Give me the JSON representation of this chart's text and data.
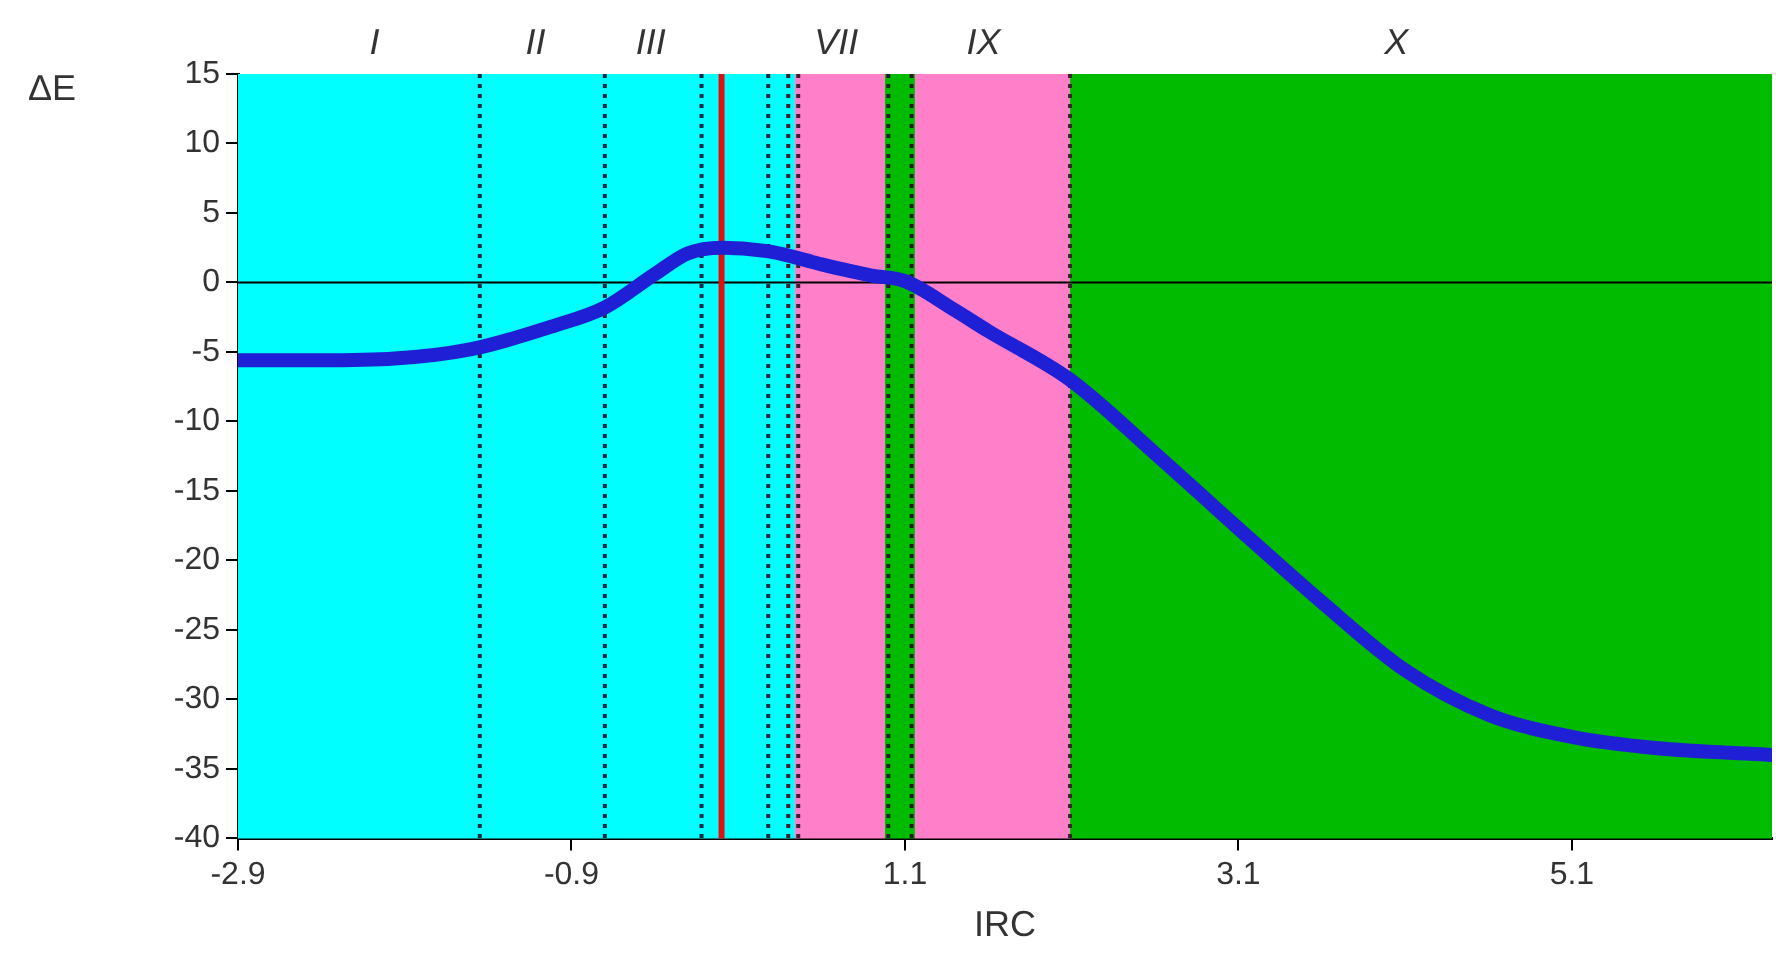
{
  "chart_data": {
    "type": "line",
    "xlabel": "IRC",
    "ylabel": "ΔE",
    "xlim": [
      -2.9,
      6.3
    ],
    "xticks": [
      -2.9,
      -0.9,
      1.1,
      3.1,
      5.1
    ],
    "ylim": [
      -40,
      15
    ],
    "yticks": [
      -40,
      -35,
      -30,
      -25,
      -20,
      -15,
      -10,
      -5,
      0,
      5,
      10,
      15
    ],
    "grid": false,
    "legend": false,
    "marker": "none",
    "line_style": "solid",
    "series": [
      {
        "color": "#1f1fd6",
        "x": [
          -2.9,
          -2.5,
          -2.0,
          -1.5,
          -1.0,
          -0.7,
          -0.4,
          -0.2,
          0.0,
          0.3,
          0.6,
          0.9,
          1.1,
          1.4,
          1.6,
          2.09,
          2.6,
          3.1,
          3.6,
          4.1,
          4.6,
          5.1,
          5.6,
          6.3
        ],
        "values": [
          -5.6,
          -5.6,
          -5.5,
          -4.8,
          -3.1,
          -1.8,
          0.6,
          2.1,
          2.5,
          2.2,
          1.3,
          0.5,
          0.1,
          -2.0,
          -3.5,
          -7.0,
          -12.3,
          -17.7,
          -23.0,
          -27.9,
          -31.1,
          -32.7,
          -33.5,
          -34.0
        ]
      }
    ],
    "bands": [
      {
        "axis": "x",
        "from": -2.9,
        "to": 0.44,
        "color": "#00ffff"
      },
      {
        "axis": "x",
        "from": 0.44,
        "to": 0.98,
        "color": "#ff80c8"
      },
      {
        "axis": "x",
        "from": 0.98,
        "to": 1.16,
        "color": "#00bb00"
      },
      {
        "axis": "x",
        "from": 1.16,
        "to": 2.09,
        "color": "#ff80c8"
      },
      {
        "axis": "x",
        "from": 2.09,
        "to": 6.3,
        "color": "#00bb00"
      }
    ],
    "ref_lines": [
      {
        "axis": "y",
        "value": 0,
        "color": "#000000",
        "line_style": "solid"
      },
      {
        "axis": "x",
        "value": -1.45,
        "color": "#1a2a40",
        "line_style": "dotted"
      },
      {
        "axis": "x",
        "value": -0.7,
        "color": "#1a2a40",
        "line_style": "dotted"
      },
      {
        "axis": "x",
        "value": -0.12,
        "color": "#1a2a40",
        "line_style": "dotted"
      },
      {
        "axis": "x",
        "value": 0.28,
        "color": "#1a2a40",
        "line_style": "dotted"
      },
      {
        "axis": "x",
        "value": 0.4,
        "color": "#402030",
        "line_style": "dotted"
      },
      {
        "axis": "x",
        "value": 0.46,
        "color": "#402030",
        "line_style": "dotted"
      },
      {
        "axis": "x",
        "value": 1.0,
        "color": "#202020",
        "line_style": "dotted"
      },
      {
        "axis": "x",
        "value": 1.14,
        "color": "#202020",
        "line_style": "dotted"
      },
      {
        "axis": "x",
        "value": 2.09,
        "color": "#402030",
        "line_style": "dotted"
      },
      {
        "axis": "x",
        "value": 0.0,
        "color": "#dd1111",
        "line_style": "solid"
      }
    ],
    "annotations": [
      "I",
      "II",
      "III",
      "VII",
      "IX",
      "X"
    ]
  }
}
